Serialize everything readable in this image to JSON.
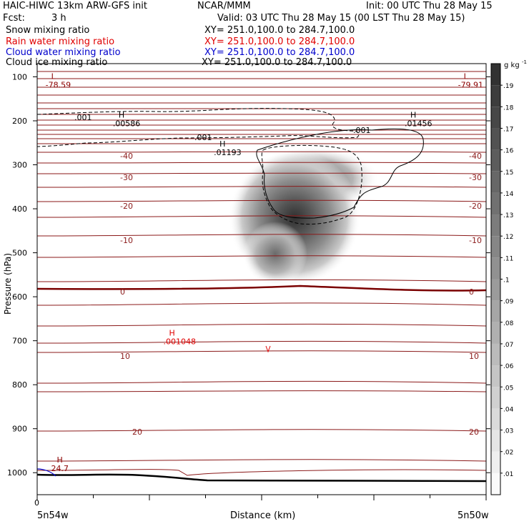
{
  "header": {
    "model": "HAIC-HIWC 13km ARW-GFS init",
    "org": "NCAR/MMM",
    "init": "Init: 00 UTC Thu 28 May 15",
    "fcst_label": "Fcst:",
    "fcst_value": "3 h",
    "valid": "Valid: 03 UTC Thu 28 May 15 (00 LST Thu 28 May 15)",
    "fields": [
      {
        "name": "Snow mixing ratio",
        "xy": "XY= 251.0,100.0 to 284.7,100.0",
        "color": "#000000"
      },
      {
        "name": "Rain water mixing ratio",
        "xy": "XY= 251.0,100.0 to 284.7,100.0",
        "color": "#e00000"
      },
      {
        "name": "Cloud water mixing ratio",
        "xy": "XY= 251.0,100.0 to 284.7,100.0",
        "color": "#0000cc"
      },
      {
        "name": "Cloud ice mixing ratio",
        "xy": "XY= 251.0,100.0 to 284.7,100.0",
        "color": "#000000"
      }
    ]
  },
  "chart_data": {
    "type": "heatmap",
    "title": "",
    "xlabel": "Distance (km)",
    "ylabel": "Pressure (hPa)",
    "x_start_label": "0",
    "x_left_label": "5n54w",
    "x_right_label": "5n50w",
    "xlim": [
      0,
      8
    ],
    "ylim": [
      1050,
      70
    ],
    "y_ticks": [
      "100",
      "200",
      "300",
      "400",
      "500",
      "600",
      "700",
      "800",
      "900",
      "1000"
    ],
    "y_tick_values": [
      100,
      200,
      300,
      400,
      500,
      600,
      700,
      800,
      900,
      1000
    ],
    "colorbar": {
      "unit": "g kg",
      "unit_exp": "-1",
      "levels": [
        ".01",
        ".02",
        ".03",
        ".04",
        ".05",
        ".06",
        ".07",
        ".08",
        ".09",
        ".1",
        ".11",
        ".12",
        ".13",
        ".14",
        ".15",
        ".16",
        ".17",
        ".18",
        ".19"
      ]
    },
    "snow_shading": {
      "center_x": 2.4,
      "center_p": 360,
      "max": ".01193"
    },
    "temperature_labels": [
      "-40",
      "-30",
      "-20",
      "-10",
      "0",
      "10",
      "20"
    ],
    "extrema": [
      {
        "type": "L",
        "value": "-78.59",
        "x": 0.25,
        "p": 108,
        "color": "#8b0000"
      },
      {
        "type": "L",
        "value": "-79.91",
        "x": 7.6,
        "p": 108,
        "color": "#8b0000"
      },
      {
        "type": "H",
        "value": ".00586",
        "x": 1.45,
        "p": 196,
        "color": "#000000"
      },
      {
        "type": "H",
        "value": ".01193",
        "x": 3.25,
        "p": 262,
        "color": "#000000"
      },
      {
        "type": "H",
        "value": ".01456",
        "x": 6.65,
        "p": 196,
        "color": "#000000"
      },
      {
        "type": "H",
        "value": ".001048",
        "x": 2.35,
        "p": 692,
        "color": "#e00000"
      },
      {
        "type": "H",
        "value": "24.7",
        "x": 0.35,
        "p": 980,
        "color": "#8b0000"
      }
    ],
    "contour_labels": [
      ".001",
      ".001",
      ".001"
    ]
  }
}
